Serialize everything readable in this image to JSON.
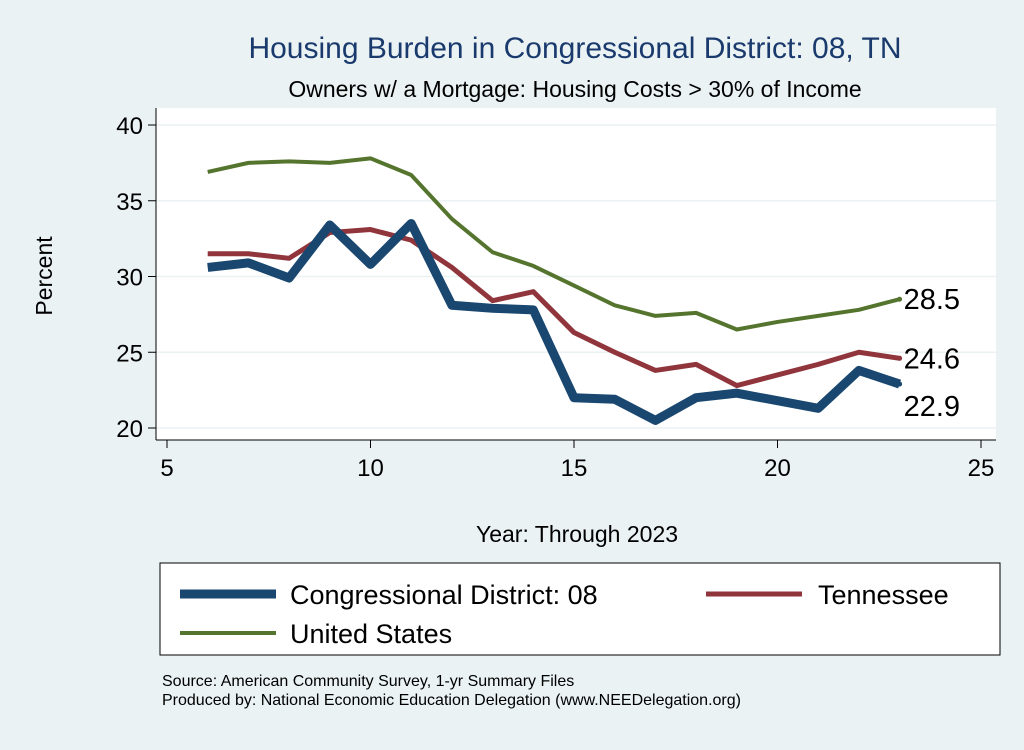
{
  "chart_data": {
    "type": "line",
    "title": "Housing Burden in Congressional District:  08, TN",
    "subtitle": "Owners w/ a Mortgage: Housing Costs > 30% of Income",
    "xlabel": "Year: Through 2023",
    "ylabel": "Percent",
    "xlim": [
      5,
      25
    ],
    "ylim": [
      20,
      40
    ],
    "xticks": [
      5,
      10,
      15,
      20,
      25
    ],
    "yticks": [
      20,
      25,
      30,
      35,
      40
    ],
    "grid": true,
    "legend_placement": "bottom",
    "x": [
      6,
      7,
      8,
      9,
      10,
      11,
      12,
      13,
      14,
      15,
      16,
      17,
      18,
      19,
      20,
      21,
      22,
      23
    ],
    "series": [
      {
        "name": "Congressional District:  08",
        "color": "#1a476f",
        "width": 9,
        "values": [
          30.6,
          30.9,
          29.9,
          33.4,
          30.8,
          33.5,
          28.1,
          27.9,
          27.8,
          22.0,
          21.9,
          20.5,
          22.0,
          22.3,
          21.8,
          21.3,
          23.8,
          22.9
        ],
        "end_label": "22.9"
      },
      {
        "name": "Tennessee",
        "color": "#90353b",
        "width": 5,
        "values": [
          31.5,
          31.5,
          31.2,
          32.9,
          33.1,
          32.4,
          30.6,
          28.4,
          29.0,
          26.3,
          25.0,
          23.8,
          24.2,
          22.8,
          23.5,
          24.2,
          25.0,
          24.6
        ],
        "end_label": "24.6"
      },
      {
        "name": "United States",
        "color": "#55752f",
        "width": 4,
        "values": [
          36.9,
          37.5,
          37.6,
          37.5,
          37.8,
          36.7,
          33.8,
          31.6,
          30.7,
          29.4,
          28.1,
          27.4,
          27.6,
          26.5,
          27.0,
          27.4,
          27.8,
          28.5
        ],
        "end_label": "28.5"
      }
    ],
    "notes": [
      "Source: American Community Survey, 1-yr Summary Files",
      "Produced by: National Economic Education Delegation (www.NEEDelegation.org)"
    ]
  }
}
